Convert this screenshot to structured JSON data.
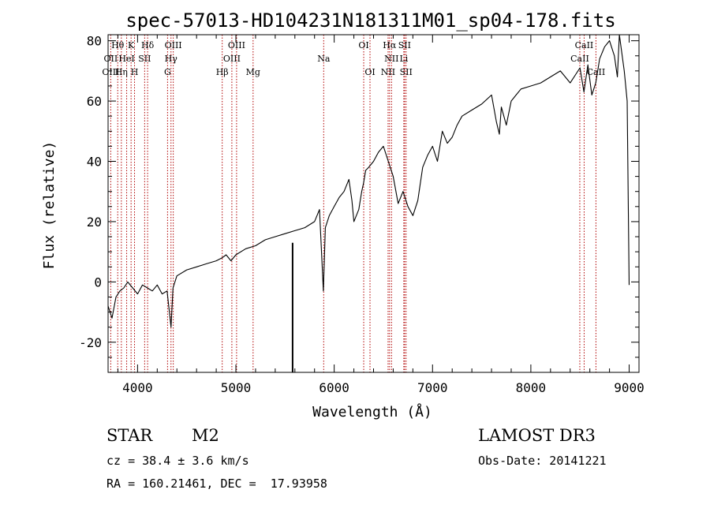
{
  "chart_data": {
    "type": "line",
    "title": "spec-57013-HD104231N181311M01_sp04-178.fits",
    "xlabel": "Wavelength (Å)",
    "ylabel": "Flux (relative)",
    "xlim": [
      3700,
      9100
    ],
    "ylim": [
      -30,
      82
    ],
    "x_ticks": [
      4000,
      5000,
      6000,
      7000,
      8000,
      9000
    ],
    "y_ticks": [
      -20,
      0,
      20,
      40,
      60,
      80
    ],
    "grid": false,
    "series": [
      {
        "name": "flux",
        "x": [
          3700,
          3740,
          3780,
          3820,
          3860,
          3900,
          3950,
          4000,
          4050,
          4100,
          4150,
          4200,
          4250,
          4300,
          4340,
          4360,
          4400,
          4500,
          4600,
          4700,
          4800,
          4860,
          4900,
          4950,
          5000,
          5100,
          5200,
          5300,
          5400,
          5500,
          5600,
          5700,
          5800,
          5850,
          5890,
          5910,
          5950,
          6000,
          6050,
          6100,
          6150,
          6180,
          6200,
          6250,
          6280,
          6300,
          6320,
          6350,
          6400,
          6450,
          6500,
          6550,
          6600,
          6650,
          6700,
          6750,
          6800,
          6850,
          6900,
          6950,
          7000,
          7050,
          7100,
          7150,
          7200,
          7250,
          7300,
          7400,
          7500,
          7600,
          7650,
          7680,
          7700,
          7750,
          7800,
          7850,
          7900,
          8000,
          8100,
          8200,
          8300,
          8400,
          8500,
          8540,
          8580,
          8620,
          8660,
          8700,
          8750,
          8800,
          8850,
          8880,
          8900,
          8950,
          8980,
          9000
        ],
        "y": [
          -8,
          -12,
          -5,
          -3,
          -2,
          0,
          -2,
          -4,
          -1,
          -2,
          -3,
          -1,
          -4,
          -3,
          -15,
          -2,
          2,
          4,
          5,
          6,
          7,
          8,
          9,
          7,
          9,
          11,
          12,
          14,
          15,
          16,
          17,
          18,
          20,
          24,
          -3,
          18,
          22,
          25,
          28,
          30,
          34,
          27,
          20,
          24,
          30,
          33,
          37,
          38,
          40,
          43,
          45,
          40,
          35,
          26,
          30,
          25,
          22,
          27,
          38,
          42,
          45,
          40,
          50,
          46,
          48,
          52,
          55,
          57,
          59,
          62,
          53,
          49,
          58,
          52,
          60,
          62,
          64,
          65,
          66,
          68,
          70,
          66,
          71,
          63,
          72,
          62,
          66,
          74,
          78,
          80,
          75,
          68,
          82,
          70,
          60,
          -1
        ]
      },
      {
        "name": "sky-gap",
        "x": [
          5577,
          5577
        ],
        "y": [
          -30,
          13
        ]
      }
    ],
    "lines_top": [
      {
        "label": "Hθ",
        "w": 3798
      },
      {
        "label": "K",
        "w": 3934
      },
      {
        "label": "Hδ",
        "w": 4102
      },
      {
        "label": "OIII",
        "w": 4363
      },
      {
        "label": "OIII",
        "w": 5007
      },
      {
        "label": "OI",
        "w": 6300
      },
      {
        "label": "Hα",
        "w": 6563
      },
      {
        "label": "SII",
        "w": 6716
      },
      {
        "label": "CaII",
        "w": 8542
      }
    ],
    "lines_mid": [
      {
        "label": "OII",
        "w": 3727
      },
      {
        "label": "HeI",
        "w": 3889
      },
      {
        "label": "SII",
        "w": 4072
      },
      {
        "label": "Hγ",
        "w": 4340
      },
      {
        "label": "OIII",
        "w": 4959
      },
      {
        "label": "Na",
        "w": 5893
      },
      {
        "label": "NII",
        "w": 6583
      },
      {
        "label": "Li",
        "w": 6708
      },
      {
        "label": "CaII",
        "w": 8498
      }
    ],
    "lines_bottom": [
      {
        "label": "OIII",
        "w": 3727
      },
      {
        "label": "Hη",
        "w": 3835
      },
      {
        "label": "H",
        "w": 3969
      },
      {
        "label": "G",
        "w": 4305
      },
      {
        "label": "Hβ",
        "w": 4861
      },
      {
        "label": "Mg",
        "w": 5175
      },
      {
        "label": "OI",
        "w": 6364
      },
      {
        "label": "NII",
        "w": 6548
      },
      {
        "label": "SII",
        "w": 6731
      },
      {
        "label": "CaII",
        "w": 8662
      }
    ]
  },
  "info": {
    "class_label": "STAR",
    "subclass": "M2",
    "survey": "LAMOST DR3",
    "cz_text": "cz = 38.4 ± 3.6 km/s",
    "obs_date": "Obs-Date: 20141221",
    "coords": "RA = 160.21461, DEC =  17.93958"
  },
  "colors": {
    "line": "#000000",
    "marker": "#b00000",
    "axis": "#000000"
  }
}
